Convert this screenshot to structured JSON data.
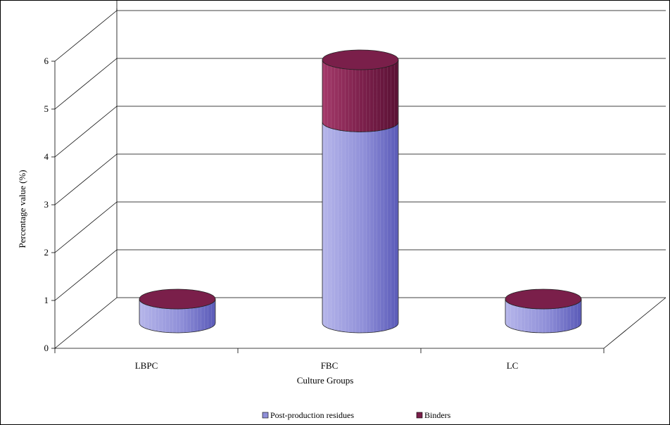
{
  "chart_data": {
    "type": "bar",
    "stacked": true,
    "three_d": true,
    "categories": [
      "LBPC",
      "FBC",
      "LC"
    ],
    "series": [
      {
        "name": "Post-production residues",
        "values": [
          0.5,
          4.2,
          0.5
        ],
        "color": "#8F8FD8"
      },
      {
        "name": "Binders",
        "values": [
          0.0,
          1.3,
          0.0
        ],
        "color": "#7A1F4A"
      }
    ],
    "xlabel": "Culture Groups",
    "ylabel": "Percentage value (%)",
    "ylim": [
      0,
      6
    ],
    "yticks": [
      0,
      1,
      2,
      3,
      4,
      5,
      6
    ],
    "grid": true,
    "legend": "bottom"
  }
}
